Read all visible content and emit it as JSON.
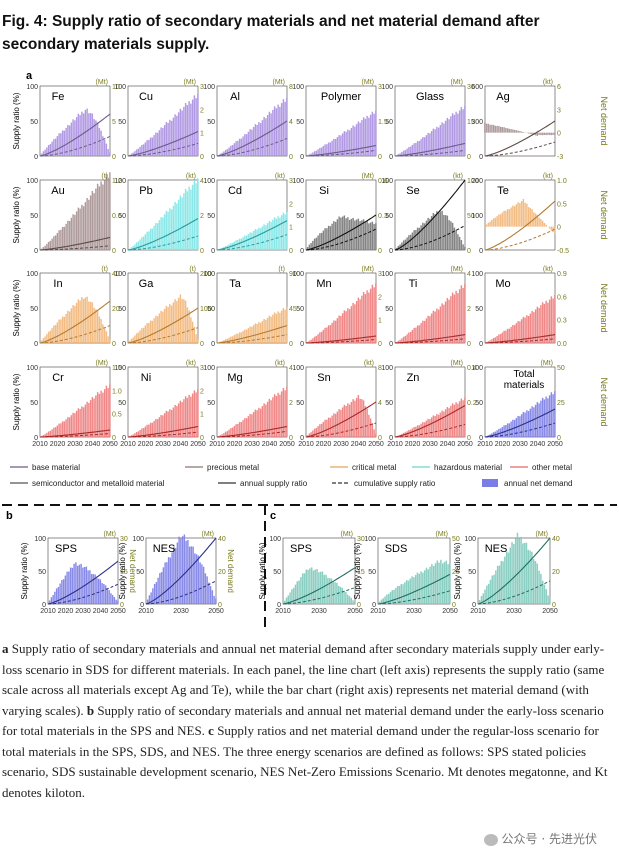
{
  "title": "Fig. 4: Supply ratio of secondary materials and net material demand after secondary materials supply.",
  "panel_letters": {
    "a": "a",
    "b": "b",
    "c": "c"
  },
  "axis_text": {
    "left_label": "Supply ratio (%)",
    "right_label_a": "Net demand",
    "right_label_bc": "Net demand",
    "left_ticks": [
      "0",
      "50",
      "100"
    ],
    "x_ticks": [
      "2010",
      "2020",
      "2030",
      "2040",
      "2050"
    ]
  },
  "legend": [
    {
      "label": "base material",
      "kind": "line",
      "color": "#6d5a8a"
    },
    {
      "label": "precious metal",
      "kind": "line",
      "color": "#8a7672"
    },
    {
      "label": "critical metal",
      "kind": "line",
      "color": "#e8a35a"
    },
    {
      "label": "hazardous material",
      "kind": "line",
      "color": "#67d8d8"
    },
    {
      "label": "other metal",
      "kind": "line",
      "color": "#e86868"
    },
    {
      "label": "semiconductor and metalloid material",
      "kind": "line",
      "color": "#555555"
    },
    {
      "label": "annual supply ratio",
      "kind": "line",
      "color": "#333333"
    },
    {
      "label": "cumulative supply ratio",
      "kind": "dash",
      "color": "#333333"
    },
    {
      "label": "annual net demand",
      "kind": "box",
      "color": "#7b7de6"
    }
  ],
  "colors": {
    "base": "#a98ee0",
    "base_line": "#6d5a8a",
    "precious": "#a59090",
    "precious_line": "#5d4a48",
    "critical": "#f2b577",
    "critical_line": "#b47a2e",
    "hazardous": "#7fe6e6",
    "hazardous_line": "#2a9a9a",
    "other": "#ee7b7b",
    "other_line": "#a82a2a",
    "semi": "#777777",
    "semi_line": "#111111",
    "total": "#7b7de6",
    "total_line": "#2b2f8a",
    "teal": "#7ec9bb",
    "teal_line": "#1f6f62",
    "right_axis": "#7a7a1e"
  },
  "chart_data": [
    {
      "type": "bar",
      "panel": "a",
      "name": "Fe",
      "unit": "(Mt)",
      "right_ticks": [
        "0",
        "5",
        "10"
      ],
      "rmax": 10,
      "group": "base",
      "shape": "hump",
      "peak_year": 2036,
      "peak_value": 6.5,
      "ratio_end": 60,
      "cum_end": 28
    },
    {
      "type": "bar",
      "panel": "a",
      "name": "Cu",
      "unit": "(Mt)",
      "right_ticks": [
        "0",
        "1",
        "2",
        "3"
      ],
      "rmax": 3,
      "group": "base",
      "shape": "rise",
      "peak_year": 2050,
      "peak_value": 2.6,
      "ratio_end": 35,
      "cum_end": 18
    },
    {
      "type": "bar",
      "panel": "a",
      "name": "Al",
      "unit": "(Mt)",
      "right_ticks": [
        "0",
        "4",
        "8"
      ],
      "rmax": 8,
      "group": "base",
      "shape": "rise",
      "peak_year": 2050,
      "peak_value": 6.5,
      "ratio_end": 50,
      "cum_end": 25
    },
    {
      "type": "bar",
      "panel": "a",
      "name": "Polymer",
      "unit": "(Mt)",
      "right_ticks": [
        "0",
        "1.5",
        "3"
      ],
      "rmax": 3,
      "group": "base",
      "shape": "rise",
      "peak_year": 2050,
      "peak_value": 1.9,
      "ratio_end": 15,
      "cum_end": 8
    },
    {
      "type": "bar",
      "panel": "a",
      "name": "Glass",
      "unit": "(Mt)",
      "right_ticks": [
        "0",
        "15",
        "30"
      ],
      "rmax": 30,
      "group": "base",
      "shape": "rise",
      "peak_year": 2050,
      "peak_value": 21,
      "ratio_end": 18,
      "cum_end": 8
    },
    {
      "type": "bar",
      "panel": "a",
      "name": "Ag",
      "unit": "(kt)",
      "right_ticks": [
        "-3",
        "0",
        "3",
        "6"
      ],
      "rmax": 6,
      "rmin": -3,
      "left_ticks": [
        "0",
        "300",
        "600"
      ],
      "group": "precious",
      "shape": "neg",
      "peak_year": 2050,
      "peak_value": 2,
      "ratio_end": 300,
      "cum_end": 120
    },
    {
      "type": "bar",
      "panel": "a",
      "name": "Au",
      "unit": "(t)",
      "right_ticks": [
        "0",
        "0.6",
        "1.2"
      ],
      "rmax": 1.2,
      "group": "precious",
      "shape": "rise",
      "peak_year": 2050,
      "peak_value": 1.3,
      "ratio_end": 18,
      "cum_end": 6
    },
    {
      "type": "bar",
      "panel": "a",
      "name": "Pb",
      "unit": "(kt)",
      "right_ticks": [
        "0",
        "2",
        "4"
      ],
      "rmax": 4,
      "group": "hazardous",
      "shape": "rise",
      "peak_year": 2050,
      "peak_value": 4,
      "ratio_end": 45,
      "cum_end": 20
    },
    {
      "type": "bar",
      "panel": "a",
      "name": "Cd",
      "unit": "(kt)",
      "right_ticks": [
        "0",
        "1",
        "2",
        "3"
      ],
      "rmax": 3,
      "group": "hazardous",
      "shape": "rise",
      "peak_year": 2050,
      "peak_value": 1.6,
      "ratio_end": 42,
      "cum_end": 22
    },
    {
      "type": "bar",
      "panel": "a",
      "name": "Si",
      "unit": "(Mt)",
      "right_ticks": [
        "0",
        "0.3",
        "0.6"
      ],
      "rmax": 0.6,
      "group": "semi",
      "shape": "plateau",
      "peak_year": 2030,
      "peak_value": 0.28,
      "ratio_end": 50,
      "cum_end": 30
    },
    {
      "type": "bar",
      "panel": "a",
      "name": "Se",
      "unit": "(kt)",
      "right_ticks": [
        "0",
        "50",
        "100"
      ],
      "rmax": 100,
      "group": "semi",
      "shape": "hump",
      "peak_year": 2035,
      "peak_value": 55,
      "ratio_end": 100,
      "cum_end": 35
    },
    {
      "type": "bar",
      "panel": "a",
      "name": "Te",
      "unit": "(kt)",
      "right_ticks": [
        "-0.5",
        "0",
        "0.5",
        "1.0"
      ],
      "rmax": 1.0,
      "rmin": -0.5,
      "left_ticks": [
        "0",
        "100",
        "200"
      ],
      "group": "critical",
      "shape": "humpneg",
      "peak_year": 2032,
      "peak_value": 0.55,
      "ratio_end": 140,
      "cum_end": 60
    },
    {
      "type": "bar",
      "panel": "a",
      "name": "In",
      "unit": "(t)",
      "right_ticks": [
        "0",
        "20",
        "40"
      ],
      "rmax": 40,
      "group": "critical",
      "shape": "hump",
      "peak_year": 2035,
      "peak_value": 26,
      "ratio_end": 60,
      "cum_end": 25
    },
    {
      "type": "bar",
      "panel": "a",
      "name": "Ga",
      "unit": "(t)",
      "right_ticks": [
        "0",
        "100",
        "200"
      ],
      "rmax": 200,
      "group": "critical",
      "shape": "hump",
      "peak_year": 2040,
      "peak_value": 130,
      "ratio_end": 50,
      "cum_end": 22
    },
    {
      "type": "bar",
      "panel": "a",
      "name": "Ta",
      "unit": "(t)",
      "right_ticks": [
        "0",
        "45",
        "90"
      ],
      "rmax": 90,
      "group": "critical",
      "shape": "rise",
      "peak_year": 2050,
      "peak_value": 45,
      "ratio_end": 25,
      "cum_end": 12
    },
    {
      "type": "bar",
      "panel": "a",
      "name": "Mn",
      "unit": "(Mt)",
      "right_ticks": [
        "0",
        "1",
        "2",
        "3"
      ],
      "rmax": 3,
      "group": "other",
      "shape": "rise",
      "peak_year": 2050,
      "peak_value": 2.5,
      "ratio_end": 10,
      "cum_end": 5
    },
    {
      "type": "bar",
      "panel": "a",
      "name": "Ti",
      "unit": "(Mt)",
      "right_ticks": [
        "0",
        "2",
        "4"
      ],
      "rmax": 4,
      "group": "other",
      "shape": "rise",
      "peak_year": 2050,
      "peak_value": 3.3,
      "ratio_end": 12,
      "cum_end": 6
    },
    {
      "type": "bar",
      "panel": "a",
      "name": "Mo",
      "unit": "(kt)",
      "right_ticks": [
        "0.0",
        "0.3",
        "0.6",
        "0.9"
      ],
      "rmax": 0.9,
      "group": "other",
      "shape": "rise",
      "peak_year": 2050,
      "peak_value": 0.6,
      "ratio_end": 12,
      "cum_end": 6
    },
    {
      "type": "bar",
      "panel": "a",
      "name": "Cr",
      "unit": "(Mt)",
      "right_ticks": [
        "0",
        "0.5",
        "1.0",
        "1.5"
      ],
      "rmax": 1.5,
      "group": "other",
      "shape": "rise",
      "peak_year": 2050,
      "peak_value": 1.1,
      "ratio_end": 10,
      "cum_end": 5
    },
    {
      "type": "bar",
      "panel": "a",
      "name": "Ni",
      "unit": "(kt)",
      "right_ticks": [
        "0",
        "1",
        "2",
        "3"
      ],
      "rmax": 3,
      "group": "other",
      "shape": "rise",
      "peak_year": 2050,
      "peak_value": 2,
      "ratio_end": 15,
      "cum_end": 7
    },
    {
      "type": "bar",
      "panel": "a",
      "name": "Mg",
      "unit": "(kt)",
      "right_ticks": [
        "0",
        "2",
        "4"
      ],
      "rmax": 4,
      "group": "other",
      "shape": "rise",
      "peak_year": 2050,
      "peak_value": 2.8,
      "ratio_end": 15,
      "cum_end": 8
    },
    {
      "type": "bar",
      "panel": "a",
      "name": "Sn",
      "unit": "(kt)",
      "right_ticks": [
        "0",
        "4",
        "8"
      ],
      "rmax": 8,
      "group": "other",
      "shape": "hump",
      "peak_year": 2040,
      "peak_value": 4.5,
      "ratio_end": 50,
      "cum_end": 20
    },
    {
      "type": "bar",
      "panel": "a",
      "name": "Zn",
      "unit": "(Mt)",
      "right_ticks": [
        "0",
        "0.2",
        "0.4"
      ],
      "rmax": 0.4,
      "group": "other",
      "shape": "rise",
      "peak_year": 2050,
      "peak_value": 0.22,
      "ratio_end": 45,
      "cum_end": 18
    },
    {
      "type": "bar",
      "panel": "a",
      "name": "Total materials",
      "unit": "(Mt)",
      "right_ticks": [
        "0",
        "25",
        "50"
      ],
      "rmax": 50,
      "group": "total",
      "shape": "rise",
      "peak_year": 2050,
      "peak_value": 32,
      "ratio_end": 40,
      "cum_end": 20
    },
    {
      "type": "bar",
      "panel": "b",
      "name": "SPS",
      "unit": "(Mt)",
      "right_ticks": [
        "0",
        "15",
        "30"
      ],
      "rmax": 30,
      "group": "total",
      "shape": "hump",
      "peak_year": 2025,
      "peak_value": 18,
      "ratio_end": 65,
      "cum_end": 30
    },
    {
      "type": "bar",
      "panel": "b",
      "name": "NES",
      "unit": "(Mt)",
      "right_ticks": [
        "0",
        "20",
        "40"
      ],
      "rmax": 40,
      "group": "total",
      "shape": "hump",
      "peak_year": 2030,
      "peak_value": 40,
      "ratio_end": 100,
      "cum_end": 35
    },
    {
      "type": "bar",
      "panel": "c",
      "name": "SPS",
      "unit": "(Mt)",
      "right_ticks": [
        "0",
        "15",
        "30"
      ],
      "rmax": 30,
      "group": "teal",
      "shape": "hump",
      "peak_year": 2024,
      "peak_value": 16,
      "ratio_end": 55,
      "cum_end": 25
    },
    {
      "type": "bar",
      "panel": "c",
      "name": "SDS",
      "unit": "(Mt)",
      "right_ticks": [
        "0",
        "25",
        "50"
      ],
      "rmax": 50,
      "group": "teal",
      "shape": "plateau",
      "peak_year": 2045,
      "peak_value": 32,
      "ratio_end": 45,
      "cum_end": 20
    },
    {
      "type": "bar",
      "panel": "c",
      "name": "NES",
      "unit": "(Mt)",
      "right_ticks": [
        "0",
        "20",
        "40"
      ],
      "rmax": 40,
      "group": "teal",
      "shape": "hump",
      "peak_year": 2032,
      "peak_value": 40,
      "ratio_end": 100,
      "cum_end": 35
    }
  ],
  "caption": {
    "a_letter": "a",
    "a_text": " Supply ratio of secondary materials and annual net material demand after secondary materials supply under early-loss scenario in SDS for different materials. In each panel, the line chart (left axis) represents the supply ratio (same scale across all materials except Ag and Te), while the bar chart (right axis) represents net material demand (with varying scales). ",
    "b_letter": "b",
    "b_text": " Supply ratio of secondary materials and annual net material demand under the early-loss scenario for total materials in the SPS and NES. ",
    "c_letter": "c",
    "c_text": " Supply ratios and net material demand under the regular-loss scenario for total materials in the SPS, SDS, and NES. The three energy scenarios are defined as follows: SPS stated policies scenario, SDS sustainable development scenario, NES Net-Zero Emissions Scenario. Mt denotes megatonne, and Kt denotes kiloton."
  },
  "watermark": "公众号 · 先进光伏"
}
